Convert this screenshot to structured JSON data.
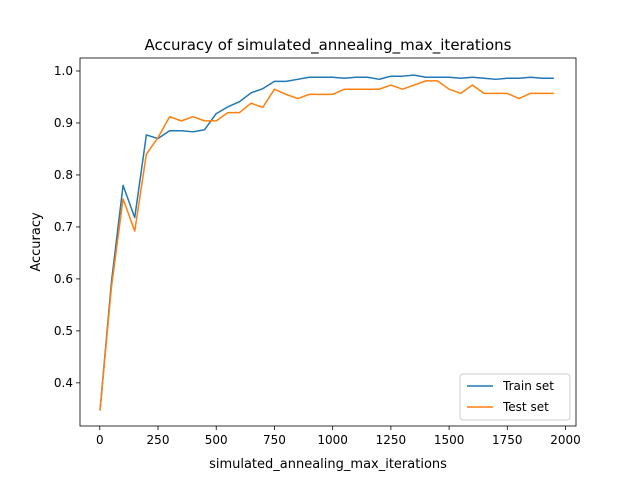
{
  "chart_data": {
    "type": "line",
    "title": "Accuracy of simulated_annealing_max_iterations",
    "xlabel": "simulated_annealing_max_iterations",
    "ylabel": "Accuracy",
    "xlim": [
      -85,
      2045
    ],
    "ylim": [
      0.317,
      1.025
    ],
    "xticks": [
      0,
      250,
      500,
      750,
      1000,
      1250,
      1500,
      1750,
      2000
    ],
    "yticks": [
      0.4,
      0.5,
      0.6,
      0.7,
      0.8,
      0.9,
      1.0
    ],
    "xtick_labels": [
      "0",
      "250",
      "500",
      "750",
      "1000",
      "1250",
      "1500",
      "1750",
      "2000"
    ],
    "ytick_labels": [
      "0.4",
      "0.5",
      "0.6",
      "0.7",
      "0.8",
      "0.9",
      "1.0"
    ],
    "grid": false,
    "legend_position": "lower-right",
    "x": [
      1,
      50,
      100,
      150,
      200,
      250,
      300,
      350,
      400,
      450,
      500,
      550,
      600,
      650,
      700,
      750,
      800,
      850,
      900,
      950,
      1000,
      1050,
      1100,
      1150,
      1200,
      1250,
      1300,
      1350,
      1400,
      1450,
      1500,
      1550,
      1600,
      1650,
      1700,
      1750,
      1800,
      1850,
      1900,
      1950
    ],
    "series": [
      {
        "name": "Train set",
        "color": "#1f77b4",
        "values": [
          0.347,
          0.594,
          0.78,
          0.718,
          0.877,
          0.87,
          0.885,
          0.885,
          0.883,
          0.887,
          0.918,
          0.931,
          0.941,
          0.958,
          0.966,
          0.98,
          0.98,
          0.984,
          0.988,
          0.988,
          0.988,
          0.986,
          0.988,
          0.988,
          0.984,
          0.99,
          0.99,
          0.992,
          0.988,
          0.988,
          0.988,
          0.986,
          0.988,
          0.986,
          0.984,
          0.986,
          0.986,
          0.988,
          0.986,
          0.986
        ]
      },
      {
        "name": "Test set",
        "color": "#ff7f0e",
        "values": [
          0.347,
          0.584,
          0.754,
          0.692,
          0.84,
          0.872,
          0.912,
          0.904,
          0.912,
          0.904,
          0.904,
          0.92,
          0.92,
          0.938,
          0.93,
          0.965,
          0.955,
          0.947,
          0.955,
          0.955,
          0.955,
          0.965,
          0.965,
          0.965,
          0.965,
          0.973,
          0.965,
          0.973,
          0.981,
          0.981,
          0.965,
          0.957,
          0.973,
          0.957,
          0.957,
          0.957,
          0.947,
          0.957,
          0.957,
          0.957
        ]
      }
    ]
  }
}
